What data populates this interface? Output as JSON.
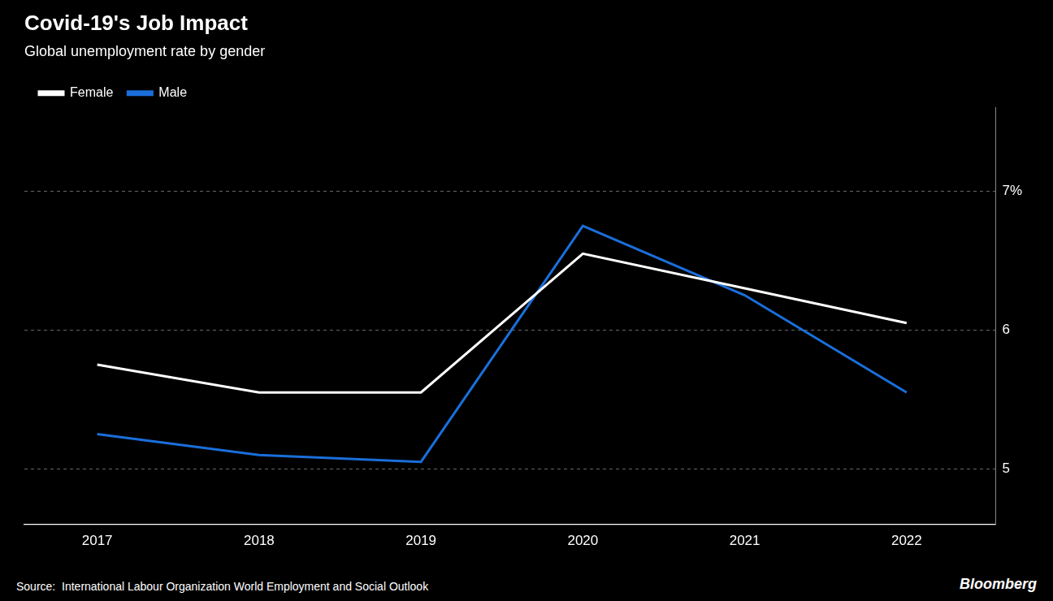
{
  "chart_data": {
    "type": "line",
    "title": "Covid-19's Job Impact",
    "subtitle": "Global unemployment rate by gender",
    "annotations": [
      "Source:  International Labour Organization World Employment and Social Outlook",
      "Bloomberg"
    ],
    "x": [
      2017,
      2018,
      2019,
      2020,
      2021,
      2022
    ],
    "series": [
      {
        "name": "Female",
        "color": "#ffffff",
        "values": [
          5.75,
          5.55,
          5.55,
          6.55,
          6.3,
          6.05
        ]
      },
      {
        "name": "Male",
        "color": "#1a6fdb",
        "values": [
          5.25,
          5.1,
          5.05,
          6.75,
          6.25,
          5.55
        ]
      }
    ],
    "xlim": [
      2016.55,
      2022.55
    ],
    "xticks": [
      2017,
      2018,
      2019,
      2020,
      2021,
      2022
    ],
    "ylim": [
      4.6,
      7.6
    ],
    "yticks": [
      5,
      6,
      {
        "value": 7,
        "label": "7%"
      }
    ],
    "grid": true,
    "legend": "upper left",
    "marker": "none",
    "line_style": "solid"
  }
}
